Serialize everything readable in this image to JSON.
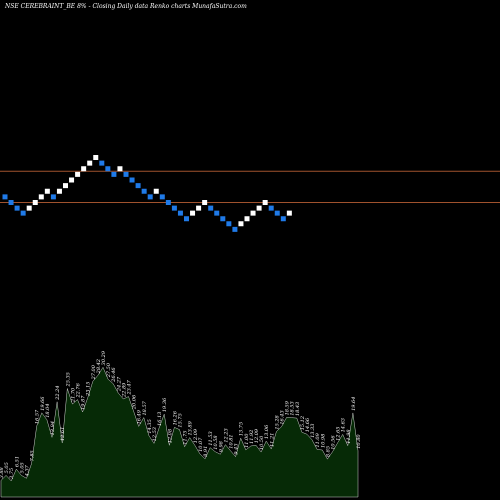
{
  "chart_data": {
    "type": "renko",
    "title": "NSE CEREBRAINT_BE 8% - Closing Daily data Renko charts MunafaSutra.com",
    "colors": {
      "background": "#000000",
      "up_brick": "#ffffff",
      "down_brick": "#1f7ae8",
      "reference_line": "#a0522d",
      "volume_fill": "#062a06",
      "volume_edge": "#ffffff"
    },
    "price_range": [
      3.6,
      7.2
    ],
    "reference_lines": [
      6.38,
      5.88
    ],
    "bricks": [
      {
        "dir": "down",
        "value": 5.97
      },
      {
        "dir": "down",
        "value": 5.88
      },
      {
        "dir": "down",
        "value": 5.79
      },
      {
        "dir": "down",
        "value": 5.71
      },
      {
        "dir": "up",
        "value": 5.79
      },
      {
        "dir": "up",
        "value": 5.88
      },
      {
        "dir": "up",
        "value": 5.97
      },
      {
        "dir": "up",
        "value": 6.06
      },
      {
        "dir": "down",
        "value": 5.97
      },
      {
        "dir": "up",
        "value": 6.06
      },
      {
        "dir": "up",
        "value": 6.15
      },
      {
        "dir": "up",
        "value": 6.24
      },
      {
        "dir": "up",
        "value": 6.33
      },
      {
        "dir": "up",
        "value": 6.42
      },
      {
        "dir": "up",
        "value": 6.51
      },
      {
        "dir": "up",
        "value": 6.6
      },
      {
        "dir": "down",
        "value": 6.51
      },
      {
        "dir": "down",
        "value": 6.42
      },
      {
        "dir": "down",
        "value": 6.33
      },
      {
        "dir": "up",
        "value": 6.42
      },
      {
        "dir": "down",
        "value": 6.33
      },
      {
        "dir": "down",
        "value": 6.24
      },
      {
        "dir": "down",
        "value": 6.15
      },
      {
        "dir": "down",
        "value": 6.06
      },
      {
        "dir": "down",
        "value": 5.97
      },
      {
        "dir": "up",
        "value": 6.06
      },
      {
        "dir": "down",
        "value": 5.97
      },
      {
        "dir": "down",
        "value": 5.88
      },
      {
        "dir": "down",
        "value": 5.79
      },
      {
        "dir": "down",
        "value": 5.71
      },
      {
        "dir": "down",
        "value": 5.62
      },
      {
        "dir": "up",
        "value": 5.71
      },
      {
        "dir": "up",
        "value": 5.79
      },
      {
        "dir": "up",
        "value": 5.88
      },
      {
        "dir": "down",
        "value": 5.79
      },
      {
        "dir": "down",
        "value": 5.71
      },
      {
        "dir": "down",
        "value": 5.62
      },
      {
        "dir": "down",
        "value": 5.54
      },
      {
        "dir": "down",
        "value": 5.45
      },
      {
        "dir": "up",
        "value": 5.54
      },
      {
        "dir": "up",
        "value": 5.62
      },
      {
        "dir": "up",
        "value": 5.71
      },
      {
        "dir": "up",
        "value": 5.79
      },
      {
        "dir": "up",
        "value": 5.88
      },
      {
        "dir": "down",
        "value": 5.79
      },
      {
        "dir": "down",
        "value": 5.71
      },
      {
        "dir": "down",
        "value": 5.62
      },
      {
        "dir": "up",
        "value": 5.71
      }
    ],
    "volume_labels": [
      "3.88",
      "5.05",
      "3.75",
      "6.51",
      "5.05",
      "4.37",
      "7.85",
      "16.57",
      "19.66",
      "18.04",
      "13.94",
      "22.24",
      "12.61",
      "25.35",
      "21.70",
      "22.76",
      "19.87",
      "23.15",
      "27.00",
      "28.42",
      "30.29",
      "27.50",
      "26.46",
      "24.27",
      "22.89",
      "23.47",
      "20.06",
      "16.49",
      "18.57",
      "14.35",
      "12.53",
      "16.13",
      "19.36",
      "12.08",
      "16.26",
      "15.75",
      "11.75",
      "13.89",
      "12.09",
      "10.07",
      "8.91",
      "11.53",
      "10.58",
      "9.98",
      "12.23",
      "10.81",
      "9.43",
      "13.75",
      "11.00",
      "11.92",
      "12.09",
      "10.50",
      "13.06",
      "11.21",
      "15.28",
      "16.43",
      "18.59",
      "18.53",
      "18.43",
      "15.12",
      "14.66",
      "13.33",
      "11.09",
      "10.98",
      "8.85",
      "10.56",
      "12.65",
      "14.63",
      "11.98",
      "19.64",
      "10.80"
    ]
  }
}
